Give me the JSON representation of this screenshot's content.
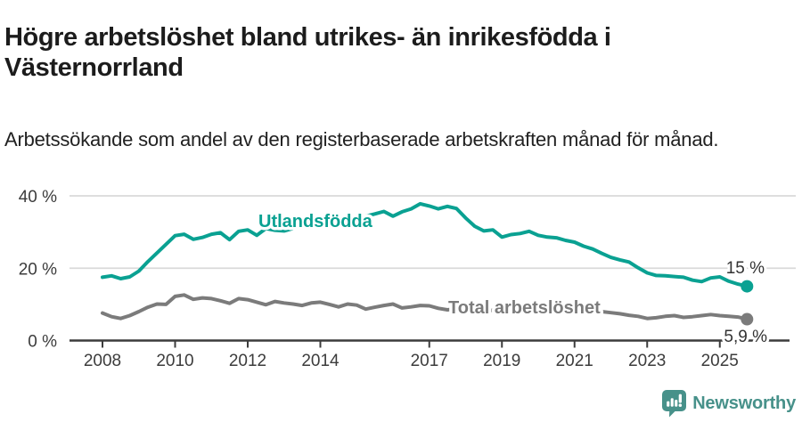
{
  "title": "Högre arbetslöshet bland utrikes- än inrikesfödda i Västernorrland",
  "subtitle": "Arbetssökande som andel av den registerbaserade arbetskraften månad för månad.",
  "chart_data": {
    "type": "line",
    "title": "Högre arbetslöshet bland utrikes- än inrikesfödda i Västernorrland",
    "xlabel": "",
    "ylabel": "",
    "x_unit": "year (monthly series shown, plotted quarterly)",
    "xlim": [
      2008,
      2025.9
    ],
    "ylim": [
      0,
      42
    ],
    "grid": "horizontal",
    "legend_position": "inline-labels",
    "yticks": [
      0,
      20,
      40
    ],
    "ytick_labels": [
      "0 %",
      "20 %",
      "40 %"
    ],
    "xticks": [
      2008,
      2010,
      2012,
      2014,
      2017,
      2019,
      2021,
      2023,
      2025
    ],
    "xtick_labels": [
      "2008",
      "2010",
      "2012",
      "2014",
      "2017",
      "2019",
      "2021",
      "2023",
      "2025"
    ],
    "series": [
      {
        "name": "Utlandsfödda",
        "color": "#0aa192",
        "end_label": "15 %",
        "end_value": 15.0,
        "x": [
          2008.0,
          2008.25,
          2008.5,
          2008.75,
          2009.0,
          2009.25,
          2009.5,
          2009.75,
          2010.0,
          2010.25,
          2010.5,
          2010.75,
          2011.0,
          2011.25,
          2011.5,
          2011.75,
          2012.0,
          2012.25,
          2012.5,
          2012.75,
          2013.0,
          2013.25,
          2013.5,
          2013.75,
          2014.0,
          2014.25,
          2014.5,
          2014.75,
          2015.0,
          2015.25,
          2015.5,
          2015.75,
          2016.0,
          2016.25,
          2016.5,
          2016.75,
          2017.0,
          2017.25,
          2017.5,
          2017.75,
          2018.0,
          2018.25,
          2018.5,
          2018.75,
          2019.0,
          2019.25,
          2019.5,
          2019.75,
          2020.0,
          2020.25,
          2020.5,
          2020.75,
          2021.0,
          2021.25,
          2021.5,
          2021.75,
          2022.0,
          2022.25,
          2022.5,
          2022.75,
          2023.0,
          2023.25,
          2023.5,
          2023.75,
          2024.0,
          2024.25,
          2024.5,
          2024.75,
          2025.0,
          2025.25,
          2025.5,
          2025.75
        ],
        "values": [
          17.5,
          17.9,
          17.1,
          17.6,
          19.2,
          21.8,
          24.2,
          26.6,
          29.0,
          29.4,
          28.0,
          28.5,
          29.4,
          29.8,
          27.9,
          30.2,
          30.6,
          29.1,
          31.0,
          30.5,
          30.3,
          31.0,
          31.5,
          31.9,
          32.3,
          32.0,
          32.8,
          33.4,
          33.9,
          34.4,
          35.0,
          35.7,
          34.4,
          35.6,
          36.4,
          37.8,
          37.2,
          36.4,
          37.1,
          36.5,
          33.9,
          31.6,
          30.3,
          30.6,
          28.6,
          29.3,
          29.6,
          30.2,
          29.1,
          28.6,
          28.4,
          27.7,
          27.2,
          26.1,
          25.3,
          24.1,
          23.0,
          22.3,
          21.7,
          20.1,
          18.7,
          18.0,
          17.9,
          17.7,
          17.5,
          16.7,
          16.3,
          17.3,
          17.6,
          16.4,
          15.6,
          15.0
        ]
      },
      {
        "name": "Total arbetslöshet",
        "color": "#7b7b7b",
        "end_label": "5,9 %",
        "end_value": 5.9,
        "x": [
          2008.0,
          2008.25,
          2008.5,
          2008.75,
          2009.0,
          2009.25,
          2009.5,
          2009.75,
          2010.0,
          2010.25,
          2010.5,
          2010.75,
          2011.0,
          2011.25,
          2011.5,
          2011.75,
          2012.0,
          2012.25,
          2012.5,
          2012.75,
          2013.0,
          2013.25,
          2013.5,
          2013.75,
          2014.0,
          2014.25,
          2014.5,
          2014.75,
          2015.0,
          2015.25,
          2015.5,
          2015.75,
          2016.0,
          2016.25,
          2016.5,
          2016.75,
          2017.0,
          2017.25,
          2017.5,
          2017.75,
          2018.0,
          2018.25,
          2018.5,
          2018.75,
          2019.0,
          2019.25,
          2019.5,
          2019.75,
          2020.0,
          2020.25,
          2020.5,
          2020.75,
          2021.0,
          2021.25,
          2021.5,
          2021.75,
          2022.0,
          2022.25,
          2022.5,
          2022.75,
          2023.0,
          2023.25,
          2023.5,
          2023.75,
          2024.0,
          2024.25,
          2024.5,
          2024.75,
          2025.0,
          2025.25,
          2025.5,
          2025.75
        ],
        "values": [
          7.6,
          6.6,
          6.1,
          6.9,
          8.0,
          9.2,
          10.1,
          10.0,
          12.2,
          12.6,
          11.4,
          11.8,
          11.6,
          11.0,
          10.3,
          11.6,
          11.3,
          10.6,
          9.9,
          10.8,
          10.4,
          10.1,
          9.7,
          10.4,
          10.6,
          10.0,
          9.3,
          10.1,
          9.8,
          8.7,
          9.2,
          9.7,
          10.1,
          9.0,
          9.3,
          9.7,
          9.6,
          8.9,
          8.5,
          8.8,
          8.9,
          8.3,
          8.0,
          8.4,
          8.5,
          8.0,
          7.8,
          8.2,
          8.4,
          9.3,
          9.7,
          9.4,
          9.2,
          8.7,
          8.2,
          8.0,
          7.7,
          7.4,
          7.0,
          6.7,
          6.1,
          6.3,
          6.7,
          6.9,
          6.4,
          6.6,
          6.9,
          7.2,
          6.9,
          6.7,
          6.5,
          5.9
        ]
      }
    ],
    "colors": {
      "grid": "#dadada",
      "axis": "#3c3c3c",
      "tick_text": "#3c3c3c",
      "value_label_text": "#333333"
    }
  },
  "branding": {
    "name": "Newsworthy",
    "color": "#47918a",
    "icon": "bar-chart-exclamation-speech-bubble"
  }
}
